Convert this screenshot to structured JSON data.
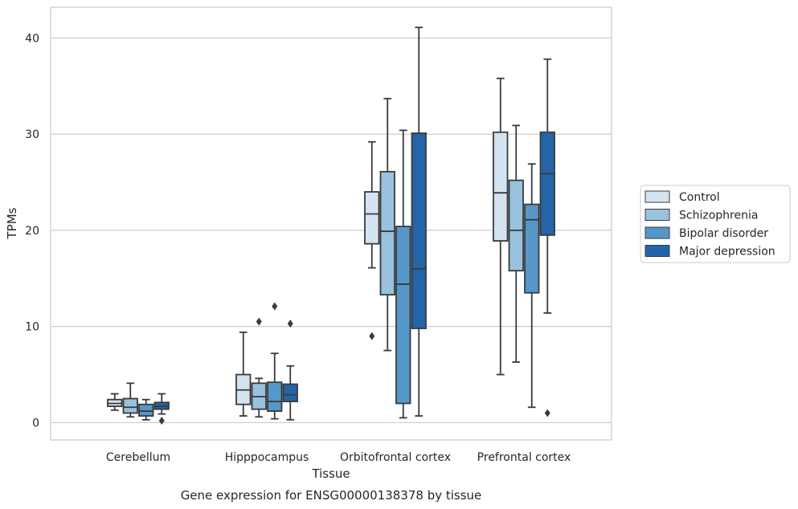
{
  "chart_data": {
    "type": "box",
    "title": "",
    "caption": "Gene expression for ENSG00000138378 by tissue",
    "xlabel": "Tissue",
    "ylabel": "TPMs",
    "ylim": [
      -1.8,
      43.2
    ],
    "yticks": [
      0,
      10,
      20,
      30,
      40
    ],
    "grid": "horizontal",
    "legend_placement": "right",
    "categories": [
      "Cerebellum",
      "Hipppocampus",
      "Orbitofrontal cortex",
      "Prefrontal cortex"
    ],
    "series": [
      {
        "name": "Control",
        "color": "#d4e3f1",
        "boxes": [
          {
            "whisker_low": 1.3,
            "q1": 1.7,
            "median": 2.0,
            "q3": 2.4,
            "whisker_high": 3.0,
            "outliers": []
          },
          {
            "whisker_low": 0.7,
            "q1": 1.9,
            "median": 3.4,
            "q3": 5.0,
            "whisker_high": 9.4,
            "outliers": []
          },
          {
            "whisker_low": 16.1,
            "q1": 18.6,
            "median": 21.7,
            "q3": 24.0,
            "whisker_high": 29.2,
            "outliers": [
              9.0
            ]
          },
          {
            "whisker_low": 5.0,
            "q1": 18.9,
            "median": 23.9,
            "q3": 30.2,
            "whisker_high": 35.8,
            "outliers": []
          }
        ]
      },
      {
        "name": "Schizophrenia",
        "color": "#98c2de",
        "boxes": [
          {
            "whisker_low": 0.6,
            "q1": 1.0,
            "median": 1.6,
            "q3": 2.5,
            "whisker_high": 4.1,
            "outliers": []
          },
          {
            "whisker_low": 0.6,
            "q1": 1.4,
            "median": 2.7,
            "q3": 4.1,
            "whisker_high": 4.6,
            "outliers": [
              10.5
            ]
          },
          {
            "whisker_low": 7.5,
            "q1": 13.3,
            "median": 19.9,
            "q3": 26.1,
            "whisker_high": 33.7,
            "outliers": []
          },
          {
            "whisker_low": 6.3,
            "q1": 15.8,
            "median": 20.0,
            "q3": 25.2,
            "whisker_high": 30.9,
            "outliers": []
          }
        ]
      },
      {
        "name": "Bipolar disorder",
        "color": "#5597c9",
        "boxes": [
          {
            "whisker_low": 0.3,
            "q1": 0.7,
            "median": 1.2,
            "q3": 1.9,
            "whisker_high": 2.4,
            "outliers": []
          },
          {
            "whisker_low": 0.4,
            "q1": 1.2,
            "median": 2.2,
            "q3": 4.2,
            "whisker_high": 7.2,
            "outliers": [
              12.1
            ]
          },
          {
            "whisker_low": 0.5,
            "q1": 2.0,
            "median": 14.4,
            "q3": 20.4,
            "whisker_high": 30.4,
            "outliers": []
          },
          {
            "whisker_low": 1.6,
            "q1": 13.5,
            "median": 21.1,
            "q3": 22.7,
            "whisker_high": 26.9,
            "outliers": []
          }
        ]
      },
      {
        "name": "Major depression",
        "color": "#2464a8",
        "boxes": [
          {
            "whisker_low": 0.9,
            "q1": 1.4,
            "median": 1.7,
            "q3": 2.1,
            "whisker_high": 3.0,
            "outliers": [
              0.2
            ]
          },
          {
            "whisker_low": 0.3,
            "q1": 2.2,
            "median": 2.9,
            "q3": 4.0,
            "whisker_high": 5.9,
            "outliers": [
              10.3
            ]
          },
          {
            "whisker_low": 0.7,
            "q1": 9.8,
            "median": 16.0,
            "q3": 30.1,
            "whisker_high": 41.1,
            "outliers": []
          },
          {
            "whisker_low": 11.4,
            "q1": 19.5,
            "median": 25.9,
            "q3": 30.2,
            "whisker_high": 37.8,
            "outliers": [
              1.0
            ]
          }
        ]
      }
    ]
  }
}
